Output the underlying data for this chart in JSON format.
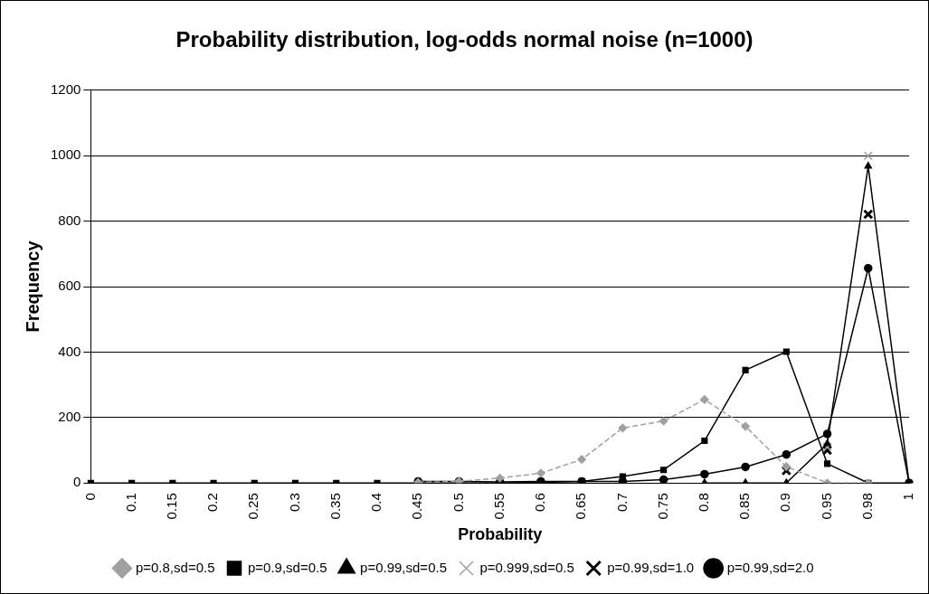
{
  "chart_data": {
    "type": "line",
    "title": "Probability distribution, log-odds normal noise (n=1000)",
    "xlabel": "Probability",
    "ylabel": "Frequency",
    "categories": [
      "0",
      "0.1",
      "0.15",
      "0.2",
      "0.25",
      "0.3",
      "0.35",
      "0.4",
      "0.45",
      "0.5",
      "0.55",
      "0.6",
      "0.65",
      "0.7",
      "0.75",
      "0.8",
      "0.85",
      "0.9",
      "0.95",
      "0.98",
      "1"
    ],
    "ylim": [
      0,
      1200
    ],
    "yticks": [
      0,
      200,
      400,
      600,
      800,
      1000,
      1200
    ],
    "grid": "y",
    "legend": "bottom",
    "series": [
      {
        "name": "p=0.8,sd=0.5",
        "color": "#a0a0a0",
        "marker": "diamond",
        "line_style": "dashed",
        "values": [
          null,
          null,
          null,
          null,
          null,
          null,
          null,
          null,
          2,
          5,
          15,
          30,
          72,
          168,
          189,
          255,
          173,
          50,
          0,
          0,
          null
        ]
      },
      {
        "name": "p=0.9,sd=0.5",
        "color": "#000000",
        "marker": "square",
        "values": [
          0,
          0,
          0,
          0,
          0,
          0,
          0,
          0,
          0,
          0,
          0,
          2,
          5,
          20,
          40,
          129,
          345,
          401,
          59,
          0,
          0
        ]
      },
      {
        "name": "p=0.99,sd=0.5",
        "color": "#000000",
        "marker": "triangle",
        "values": [
          null,
          null,
          null,
          null,
          null,
          null,
          null,
          null,
          null,
          null,
          null,
          null,
          null,
          null,
          null,
          0,
          0,
          0,
          120,
          968,
          0
        ]
      },
      {
        "name": "p=0.999,sd=0.5",
        "color": "#a0a0a0",
        "type": "scatter",
        "marker": "cross",
        "values": [
          null,
          null,
          null,
          null,
          null,
          null,
          null,
          null,
          null,
          null,
          null,
          null,
          null,
          null,
          null,
          null,
          null,
          null,
          110,
          1000,
          null
        ]
      },
      {
        "name": "p=0.99,sd=1.0",
        "color": "#000000",
        "type": "scatter",
        "marker": "cross",
        "values": [
          null,
          null,
          null,
          null,
          null,
          null,
          null,
          null,
          null,
          null,
          null,
          null,
          null,
          null,
          null,
          null,
          null,
          38,
          100,
          821,
          null
        ]
      },
      {
        "name": "p=0.99,sd=2.0",
        "color": "#000000",
        "marker": "circle",
        "values": [
          null,
          null,
          null,
          null,
          null,
          null,
          null,
          null,
          5,
          5,
          3,
          5,
          5,
          5,
          10,
          27,
          49,
          87,
          150,
          656,
          0
        ]
      }
    ]
  }
}
